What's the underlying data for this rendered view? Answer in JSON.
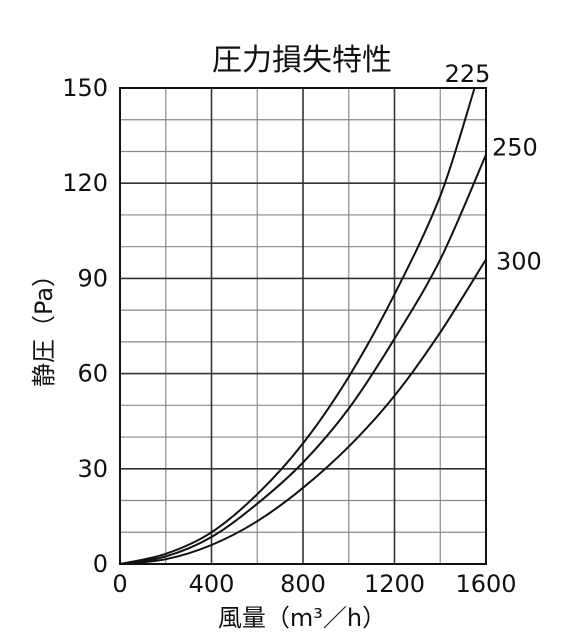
{
  "chart_data": {
    "type": "line",
    "title": "圧力損失特性",
    "xlabel": "風量（m³／h）",
    "ylabel": "静圧（Pa）",
    "xlim": [
      0,
      1600
    ],
    "ylim": [
      0,
      150
    ],
    "xticks": [
      0,
      400,
      800,
      1200,
      1600
    ],
    "yticks": [
      0,
      30,
      60,
      90,
      120,
      150
    ],
    "x_minor_step": 200,
    "y_minor_step": 10,
    "grid": true,
    "legend": "labels at line ends",
    "series": [
      {
        "name": "225",
        "x": [
          0,
          200,
          400,
          600,
          800,
          1000,
          1200,
          1400,
          1550
        ],
        "y": [
          0,
          3.2,
          10,
          22,
          38,
          59,
          85,
          116,
          150
        ]
      },
      {
        "name": "250",
        "x": [
          0,
          200,
          400,
          600,
          800,
          1000,
          1200,
          1400,
          1600
        ],
        "y": [
          0,
          2.4,
          8.5,
          19,
          32,
          49,
          71,
          96,
          129
        ]
      },
      {
        "name": "300",
        "x": [
          0,
          200,
          400,
          600,
          800,
          1000,
          1200,
          1400,
          1600
        ],
        "y": [
          0,
          1.5,
          6,
          13.5,
          24,
          37,
          53,
          73,
          96
        ]
      }
    ]
  }
}
